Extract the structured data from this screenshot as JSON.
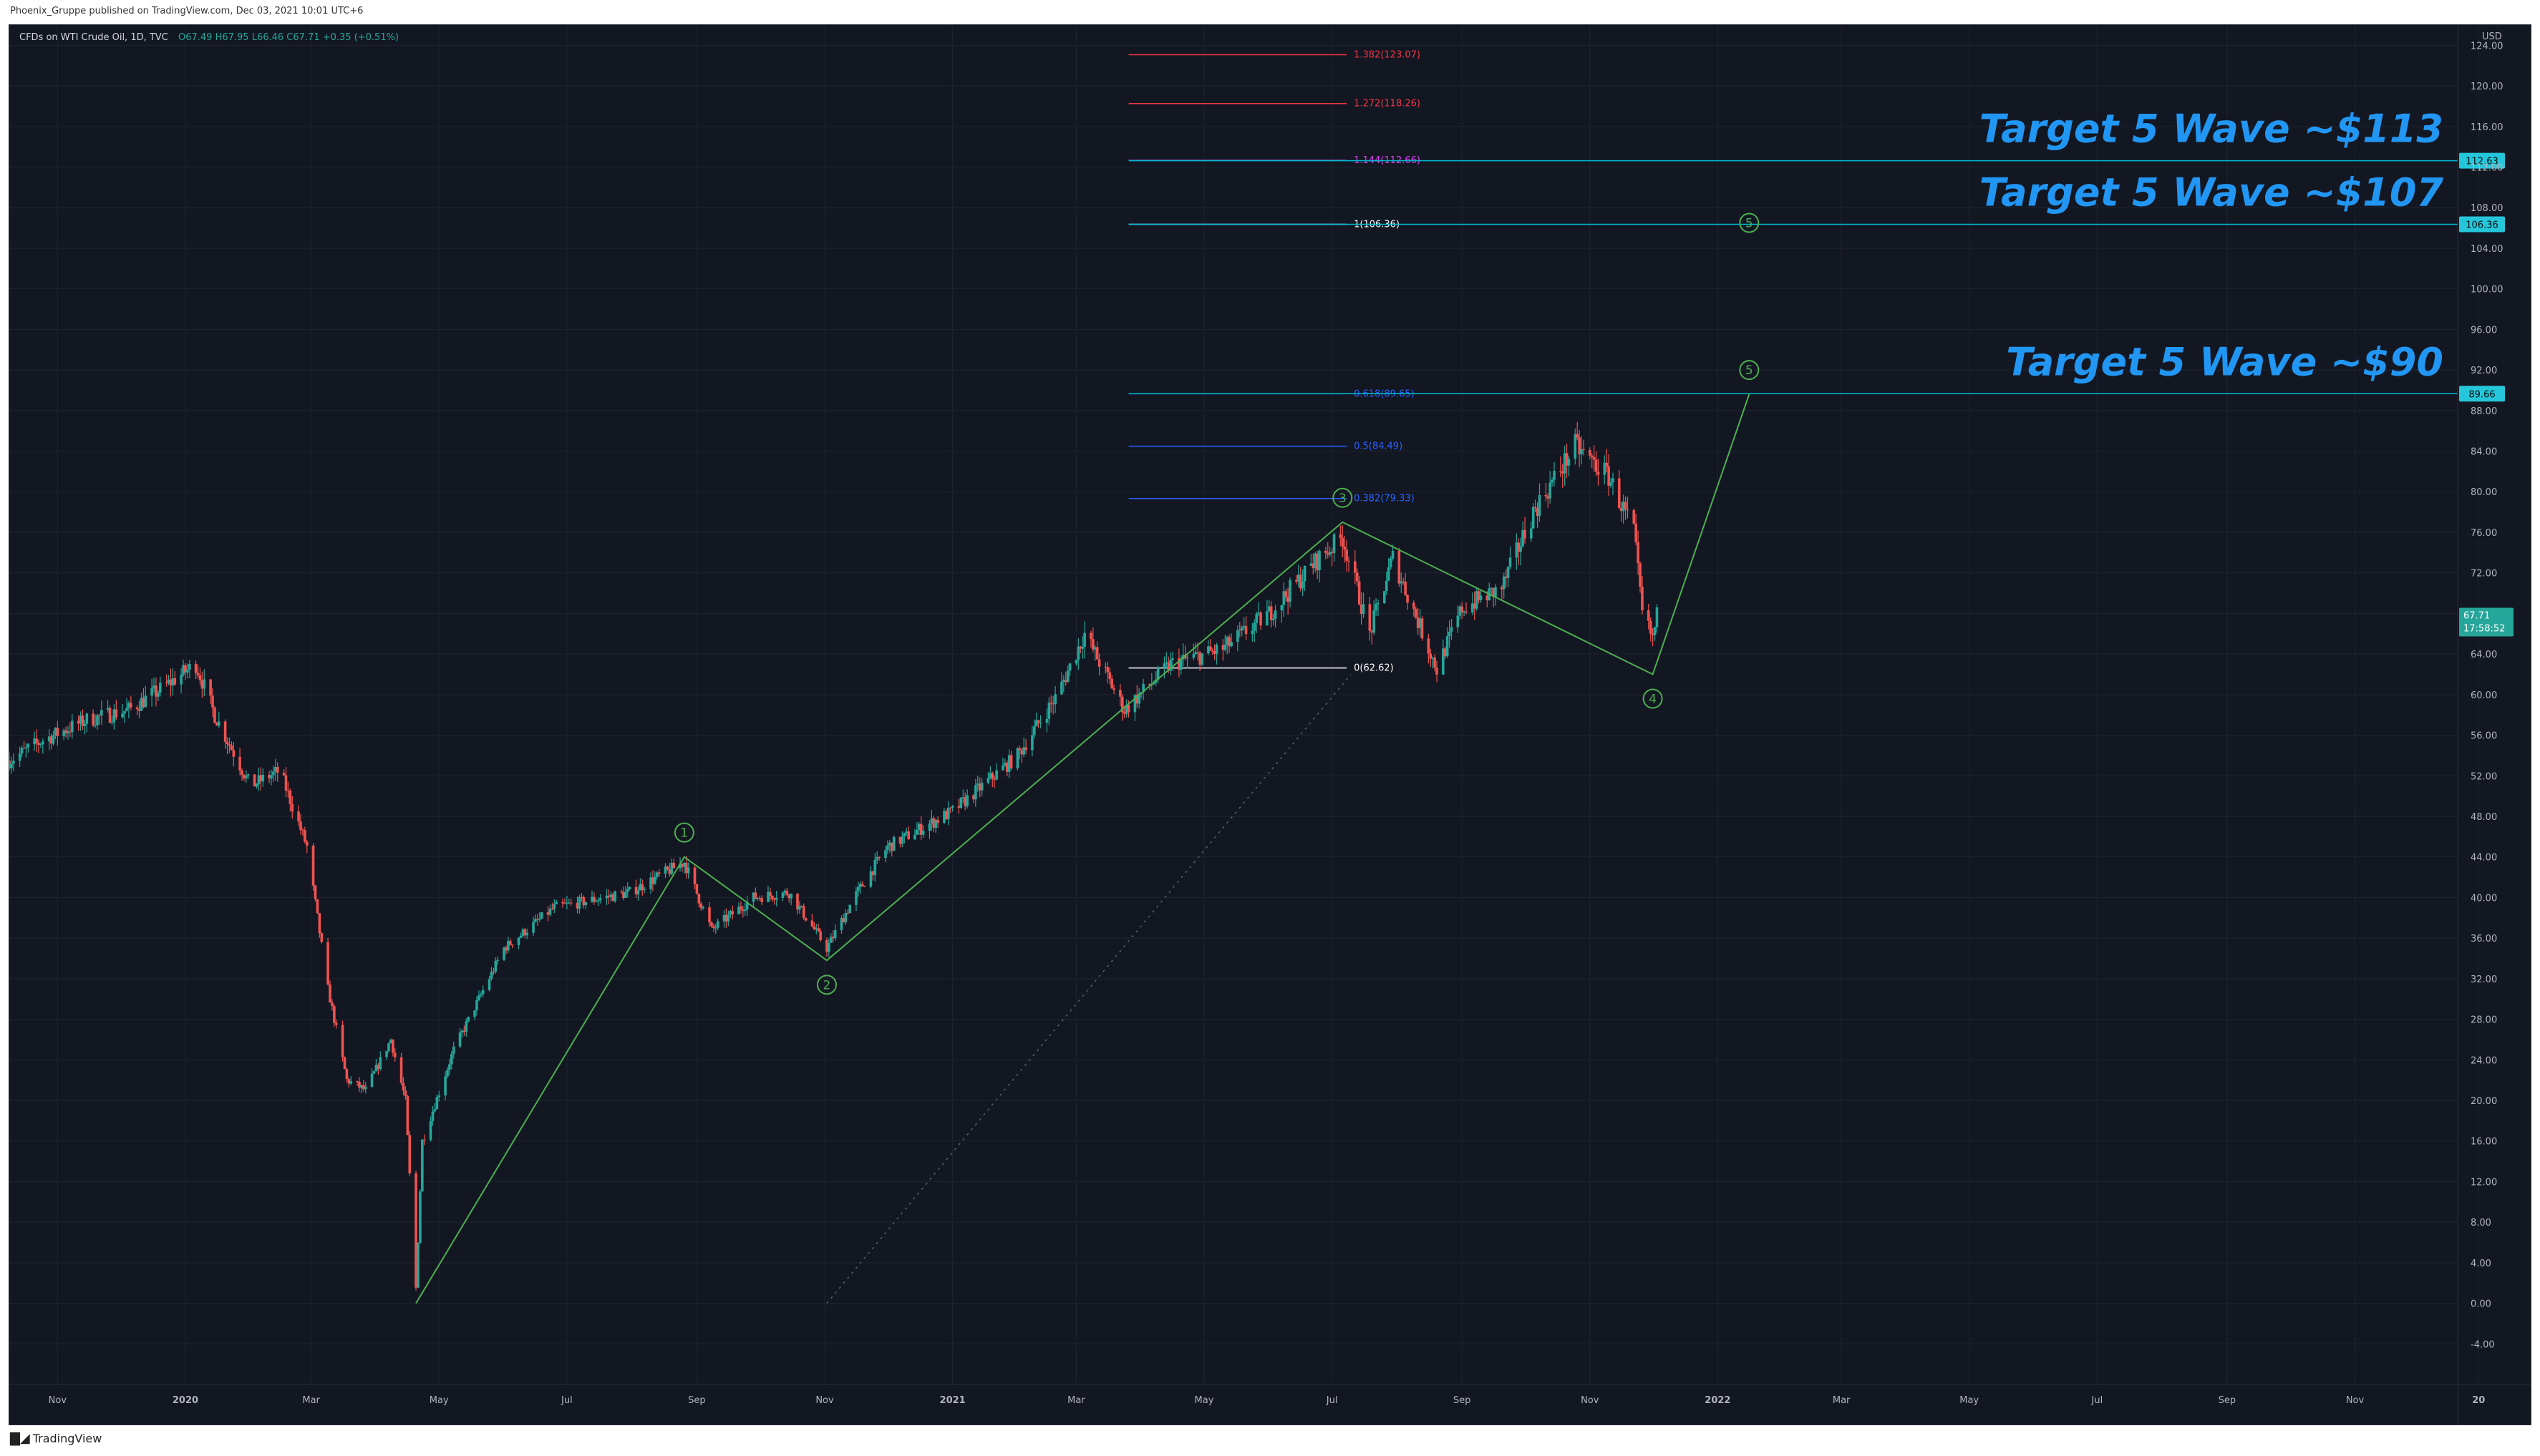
{
  "header": {
    "publisher_line": "Phoenix_Gruppe published on TradingView.com, Dec 03, 2021 10:01 UTC+6"
  },
  "legend": {
    "symbol": "CFDs on WTI Crude Oil, 1D, TVC",
    "ohlc": "O67.49 H67.95 L66.46 C67.71 +0.35 (+0.51%)"
  },
  "footer": {
    "brand": "TradingView",
    "brand_icon": "tradingview-logo-icon"
  },
  "colors": {
    "background": "#131722",
    "grid": "#1f2430",
    "up": "#26a69a",
    "down": "#ef5350",
    "wave": "#4caf50",
    "target_text": "#2196f3",
    "fib_line": "#00bcd4",
    "label_badge": "#26c6da"
  },
  "chart_data": {
    "type": "candlestick",
    "currency": "USD",
    "xlabel": "",
    "ylabel": "",
    "xlim": [
      "2019-10-09",
      "2022-12-20"
    ],
    "ylim": [
      -8,
      126
    ],
    "y_ticks": [
      "124.00",
      "120.00",
      "116.00",
      "112.00",
      "108.00",
      "104.00",
      "100.00",
      "96.00",
      "92.00",
      "88.00",
      "84.00",
      "80.00",
      "76.00",
      "72.00",
      "68.00",
      "64.00",
      "60.00",
      "56.00",
      "52.00",
      "48.00",
      "44.00",
      "40.00",
      "36.00",
      "32.00",
      "28.00",
      "24.00",
      "20.00",
      "16.00",
      "12.00",
      "8.00",
      "4.00",
      "0.00",
      "-4.00"
    ],
    "x_ticks": [
      {
        "label": "Nov",
        "date": "2019-11-01",
        "bold": false
      },
      {
        "label": "2020",
        "date": "2020-01-01",
        "bold": true
      },
      {
        "label": "Mar",
        "date": "2020-03-01",
        "bold": false
      },
      {
        "label": "May",
        "date": "2020-05-01",
        "bold": false
      },
      {
        "label": "Jul",
        "date": "2020-07-01",
        "bold": false
      },
      {
        "label": "Sep",
        "date": "2020-09-01",
        "bold": false
      },
      {
        "label": "Nov",
        "date": "2020-11-01",
        "bold": false
      },
      {
        "label": "2021",
        "date": "2021-01-01",
        "bold": true
      },
      {
        "label": "Mar",
        "date": "2021-03-01",
        "bold": false
      },
      {
        "label": "May",
        "date": "2021-05-01",
        "bold": false
      },
      {
        "label": "Jul",
        "date": "2021-07-01",
        "bold": false
      },
      {
        "label": "Sep",
        "date": "2021-09-01",
        "bold": false
      },
      {
        "label": "Nov",
        "date": "2021-11-01",
        "bold": false
      },
      {
        "label": "2022",
        "date": "2022-01-01",
        "bold": true
      },
      {
        "label": "Mar",
        "date": "2022-03-01",
        "bold": false
      },
      {
        "label": "May",
        "date": "2022-05-01",
        "bold": false
      },
      {
        "label": "Jul",
        "date": "2022-07-01",
        "bold": false
      },
      {
        "label": "Sep",
        "date": "2022-09-01",
        "bold": false
      },
      {
        "label": "Nov",
        "date": "2022-11-01",
        "bold": false
      },
      {
        "label": "20",
        "date": "2022-12-30",
        "bold": true
      }
    ],
    "price_series": [
      [
        "2019-10-09",
        53.5
      ],
      [
        "2019-10-25",
        55.5
      ],
      [
        "2019-11-15",
        57.5
      ],
      [
        "2019-12-05",
        58.5
      ],
      [
        "2019-12-20",
        60.5
      ],
      [
        "2020-01-06",
        63.0
      ],
      [
        "2020-01-15",
        58.0
      ],
      [
        "2020-02-01",
        51.0
      ],
      [
        "2020-02-15",
        52.5
      ],
      [
        "2020-02-28",
        45.0
      ],
      [
        "2020-03-09",
        31.0
      ],
      [
        "2020-03-18",
        22.0
      ],
      [
        "2020-03-27",
        21.0
      ],
      [
        "2020-04-08",
        26.0
      ],
      [
        "2020-04-15",
        20.0
      ],
      [
        "2020-04-20",
        1.5
      ],
      [
        "2020-04-23",
        16.0
      ],
      [
        "2020-05-08",
        25.0
      ],
      [
        "2020-06-01",
        35.0
      ],
      [
        "2020-06-25",
        39.0
      ],
      [
        "2020-07-31",
        40.5
      ],
      [
        "2020-08-26",
        43.5
      ],
      [
        "2020-09-08",
        36.8
      ],
      [
        "2020-09-28",
        40.0
      ],
      [
        "2020-10-15",
        40.5
      ],
      [
        "2020-11-02",
        35.0
      ],
      [
        "2020-11-15",
        40.0
      ],
      [
        "2020-12-01",
        45.0
      ],
      [
        "2021-01-01",
        48.5
      ],
      [
        "2021-02-01",
        54.0
      ],
      [
        "2021-02-20",
        60.0
      ],
      [
        "2021-03-05",
        66.0
      ],
      [
        "2021-03-24",
        58.5
      ],
      [
        "2021-04-15",
        63.0
      ],
      [
        "2021-05-10",
        64.5
      ],
      [
        "2021-06-01",
        68.0
      ],
      [
        "2021-06-25",
        73.5
      ],
      [
        "2021-07-06",
        75.5
      ],
      [
        "2021-07-19",
        66.0
      ],
      [
        "2021-07-30",
        73.5
      ],
      [
        "2021-08-20",
        62.5
      ],
      [
        "2021-09-01",
        68.5
      ],
      [
        "2021-09-20",
        70.5
      ],
      [
        "2021-10-05",
        78.0
      ],
      [
        "2021-10-25",
        84.5
      ],
      [
        "2021-11-10",
        81.5
      ],
      [
        "2021-11-22",
        76.0
      ],
      [
        "2021-11-26",
        68.0
      ],
      [
        "2021-12-01",
        65.5
      ],
      [
        "2021-12-03",
        67.71
      ]
    ],
    "last": {
      "price_label": "67.71",
      "countdown": "17:58:52",
      "price": 67.71
    },
    "elliott_waves": [
      {
        "label": "1",
        "date": "2020-08-26",
        "price": 44.0,
        "label_position": "above"
      },
      {
        "label": "2",
        "date": "2020-11-02",
        "price": 33.8,
        "label_position": "below"
      },
      {
        "label": "3",
        "date": "2021-07-06",
        "price": 77.0,
        "label_position": "above"
      },
      {
        "label": "4",
        "date": "2021-12-01",
        "price": 62.0,
        "label_position": "below"
      },
      {
        "label": "5",
        "date": "2022-01-16",
        "price": 89.6,
        "label_position": "above"
      },
      {
        "label": "5",
        "date": "2022-01-16",
        "price": 106.5,
        "label_position": "at",
        "projection_only": true
      }
    ],
    "wave_path_dates": [
      "2020-04-20",
      "2020-08-26",
      "2020-11-02",
      "2021-07-06",
      "2021-12-01",
      "2022-01-16"
    ],
    "wave_path_prices": [
      0.0,
      44.0,
      33.8,
      77.0,
      62.0,
      89.6
    ],
    "fib_start": "2021-03-26",
    "fib_end": "2021-07-08",
    "fib_levels": [
      {
        "label": "1.382(123.07)",
        "price": 123.07,
        "color": "#f23645"
      },
      {
        "label": "1.272(118.26)",
        "price": 118.26,
        "color": "#f23645"
      },
      {
        "label": "1.144(112.66)",
        "price": 112.66,
        "color": "#e040fb"
      },
      {
        "label": "1(106.36)",
        "price": 106.36,
        "color": "#ffffff"
      },
      {
        "label": "0.618(89.65)",
        "price": 89.65,
        "color": "#2962ff"
      },
      {
        "label": "0.5(84.49)",
        "price": 84.49,
        "color": "#2962ff"
      },
      {
        "label": "0.382(79.33)",
        "price": 79.33,
        "color": "#2962ff"
      },
      {
        "label": "0(62.62)",
        "price": 62.62,
        "color": "#ffffff"
      }
    ],
    "target_lines": [
      {
        "price": 112.63,
        "badge": "112.63",
        "text": "Target 5 Wave ~$113"
      },
      {
        "price": 106.36,
        "badge": "106.36",
        "text": "Target 5 Wave ~$107"
      },
      {
        "price": 89.66,
        "badge": "89.66",
        "text": "Target 5 Wave ~$90"
      }
    ],
    "dotted_trend_start": [
      "2020-11-02",
      0.0
    ],
    "dotted_trend_end": [
      "2021-07-10",
      62.0
    ]
  }
}
